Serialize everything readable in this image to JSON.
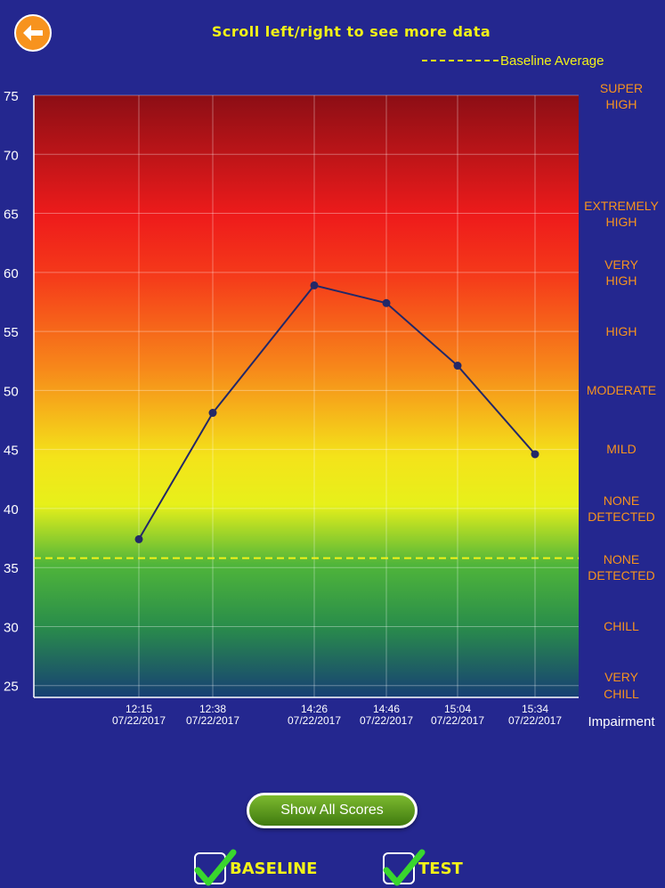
{
  "header": {
    "title": "Scroll left/right to see more data",
    "back_icon": "arrow-left-icon"
  },
  "legend": {
    "label": "Baseline Average"
  },
  "chart_data": {
    "type": "line",
    "x_categories": [
      "12:15\n07/22/2017",
      "12:38\n07/22/2017",
      "14:26\n07/22/2017",
      "14:46\n07/22/2017",
      "15:04\n07/22/2017",
      "15:34\n07/22/2017"
    ],
    "times": [
      "12:15",
      "12:38",
      "14:26",
      "14:46",
      "15:04",
      "15:34"
    ],
    "dates": [
      "07/22/2017",
      "07/22/2017",
      "07/22/2017",
      "07/22/2017",
      "07/22/2017",
      "07/22/2017"
    ],
    "series": [
      {
        "values": [
          37.4,
          48.1,
          58.9,
          57.4,
          52.1,
          44.6
        ],
        "color": "#232868"
      }
    ],
    "baseline_average": 35.8,
    "ylim": [
      24,
      75
    ],
    "yticks": [
      25,
      30,
      35,
      40,
      45,
      50,
      55,
      60,
      65,
      70,
      75
    ],
    "zones": [
      {
        "label": "SUPER\nHIGH"
      },
      {
        "label": "EXTREMELY\nHIGH"
      },
      {
        "label": "VERY\nHIGH"
      },
      {
        "label": "HIGH"
      },
      {
        "label": "MODERATE"
      },
      {
        "label": "MILD"
      },
      {
        "label": "NONE\nDETECTED"
      },
      {
        "label": "NONE\nDETECTED"
      },
      {
        "label": "CHILL"
      },
      {
        "label": "VERY\nCHILL"
      }
    ],
    "zone_label_color": "#f7931e",
    "right_axis_label": "Impairment",
    "baseline_color": "#f2f218",
    "grid": true
  },
  "buttons": {
    "show_all": "Show All Scores"
  },
  "toggles": [
    {
      "label": "BASELINE",
      "checked": true
    },
    {
      "label": "TEST",
      "checked": true
    }
  ]
}
